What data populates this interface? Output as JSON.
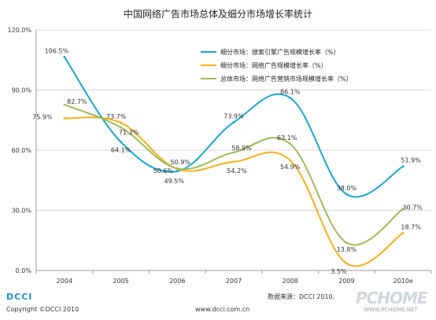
{
  "chart_data": {
    "type": "line",
    "title": "中国网络广告市场总体及细分市场增长率统计",
    "categories": [
      "2004",
      "2005",
      "2006",
      "2007",
      "2008",
      "2009",
      "2010e"
    ],
    "y_ticks": [
      "0.0%",
      "30.0%",
      "60.0%",
      "90.0%",
      "120.0%"
    ],
    "ylim": [
      0,
      120
    ],
    "grid": true,
    "legend_position": "top-right",
    "series": [
      {
        "name": "细分市场：搜索引擎广告规模增长率（%）",
        "color": "#1aa6cf",
        "values": [
          106.5,
          64.1,
          49.5,
          73.9,
          86.1,
          38.0,
          51.9
        ],
        "labels": [
          "106.5%",
          "64.1%",
          "49.5%",
          "73.9%",
          "86.1%",
          "38.0%",
          "51.9%"
        ]
      },
      {
        "name": "细分市场：网络广告规模增长率（%）",
        "color": "#f5b11a",
        "values": [
          75.9,
          73.7,
          50.6,
          54.2,
          54.9,
          3.5,
          18.7
        ],
        "labels": [
          "75.9%",
          "73.7%",
          "50.6%",
          "54.2%",
          "54.9%",
          "3.5%",
          "18.7%"
        ]
      },
      {
        "name": "总体市场：网络广告营销市场规模增长率（%）",
        "color": "#9bbb59",
        "values": [
          82.7,
          71.3,
          50.9,
          58.9,
          63.1,
          13.8,
          30.7
        ],
        "labels": [
          "82.7%",
          "71.3%",
          "50.9%",
          "58.9%",
          "63.1%",
          "13.8%",
          "30.7%"
        ]
      }
    ]
  },
  "footer": {
    "brand": "DCCI",
    "copyright": "Copyright ©DCCI  2010",
    "website": "www.dcci.com.cn",
    "source": "数据来源：DCCI 2010.",
    "watermark": "PCHOME",
    "watermark_url": "WWW.PCHOME.NET"
  }
}
